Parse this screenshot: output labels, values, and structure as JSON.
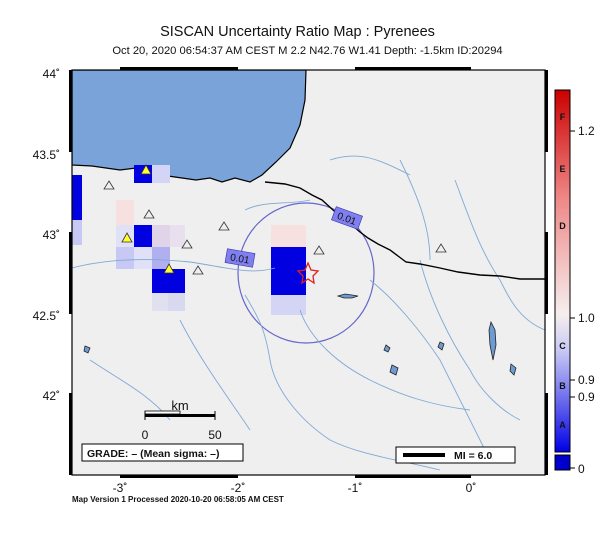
{
  "header": {
    "title": "SISCAN Uncertainty Ratio Map : Pyrenees",
    "subtitle": "Oct 20, 2020 06:54:37 AM CEST   M 2.2   N42.76 W1.41   Depth: -1.5km   ID:20294"
  },
  "footer": {
    "text": "Map Version 1 Processed 2020-10-20 06:58:05 AM CEST"
  },
  "map": {
    "lat_ticks": [
      "44˚",
      "43.5˚",
      "43˚",
      "42.5˚",
      "42˚"
    ],
    "lon_ticks": [
      "-3˚",
      "-2˚",
      "-1˚",
      "0˚"
    ],
    "contour_labels": [
      "0.01",
      "0.01"
    ],
    "scale_bar": {
      "unit": "km",
      "labels": [
        "0",
        "50"
      ]
    },
    "grade_box": "GRADE: – (Mean sigma: –)",
    "mi_legend": "MI = 6.0",
    "epicenter": {
      "lat": 42.76,
      "lon": -1.41
    }
  },
  "colorbar": {
    "ticks": [
      "1.2",
      "1.0",
      "0.9",
      "0.9",
      "0"
    ],
    "grades": [
      "F",
      "E",
      "D",
      "C",
      "B",
      "A"
    ],
    "colors": {
      "top": "#cc0000",
      "mid": "#f6eeee",
      "bottom": "#0000e6",
      "under": "#0000cc"
    }
  }
}
